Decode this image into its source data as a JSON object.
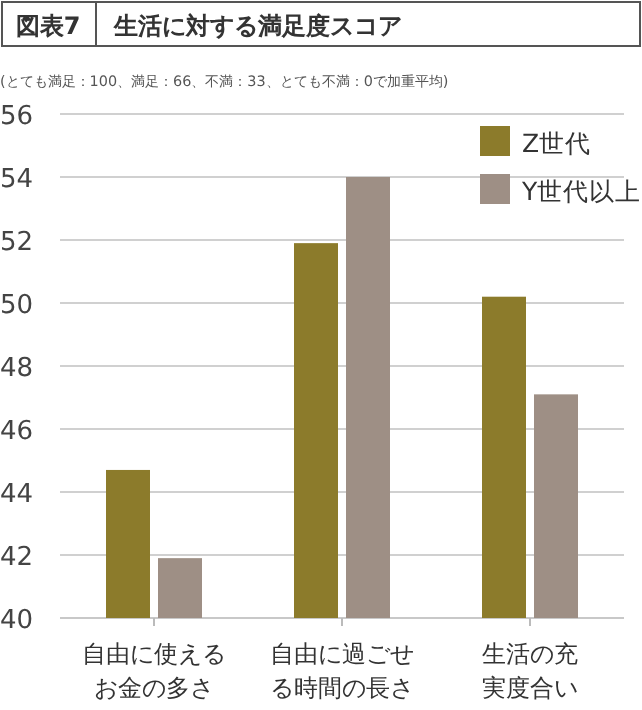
{
  "chart_data": {
    "type": "bar",
    "title": "生活に対する満足度スコア",
    "annotations": [
      "図表7",
      "(とても満足：100、満足：66、不満：33、とても不満：0で加重平均)"
    ],
    "categories": [
      "自由に使えるお金の多さ",
      "自由に過ごせる時間の長さ",
      "生活の充実度合い"
    ],
    "series": [
      {
        "name": "Z世代",
        "color": "#8c7b2b",
        "values": [
          44.7,
          51.9,
          50.2
        ]
      },
      {
        "name": "Y世代以上",
        "color": "#9e8f85",
        "values": [
          41.9,
          54.0,
          47.1
        ]
      }
    ],
    "ylim": [
      40,
      56
    ],
    "yticks": [
      40,
      42,
      44,
      46,
      48,
      50,
      52,
      54,
      56
    ],
    "grid": "y",
    "legend": "top right"
  }
}
